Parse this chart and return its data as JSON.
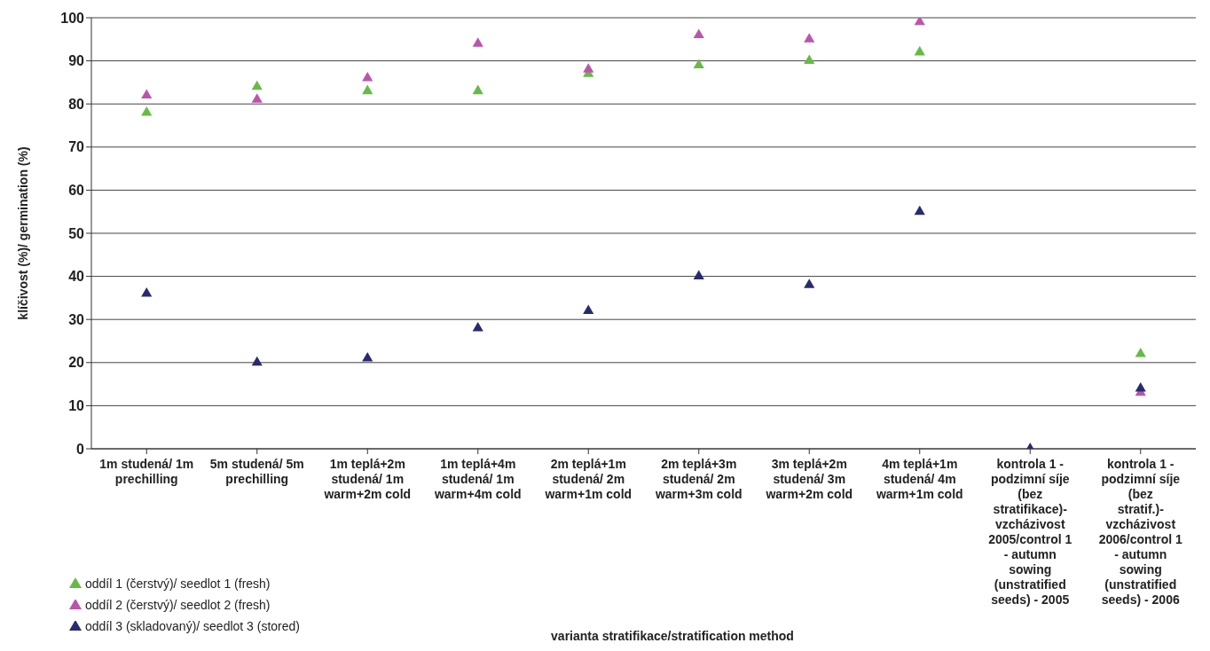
{
  "chart_data": {
    "type": "scatter",
    "annotations": [
      "varianta stratifikace/stratification method"
    ],
    "ylabel": "klíčivost (%)/ germination (%)",
    "categories": [
      "1m studená/ 1m prechilling",
      "5m studená/ 5m prechilling",
      "1m teplá+2m studená/ 1m warm+2m cold",
      "1m teplá+4m studená/ 1m warm+4m cold",
      "2m teplá+1m studená/ 2m warm+1m cold",
      "2m teplá+3m studená/ 2m warm+3m cold",
      "3m teplá+2m studená/ 3m warm+2m cold",
      "4m teplá+1m studená/ 4m warm+1m cold",
      "kontrola 1 - podzimní síje (bez stratifikace)- vzcházivost 2005/control 1 - autumn sowing (unstratified seeds) - 2005",
      "kontrola 1 - podzimní síje (bez stratif.)- vzcházivost 2006/control 1 - autumn sowing (unstratified seeds) - 2006"
    ],
    "series": [
      {
        "name": "oddíl 1 (čerstvý)/ seedlot 1 (fresh)",
        "color": "#66bb44",
        "values": [
          78,
          84,
          83,
          83,
          87,
          89,
          90,
          92,
          null,
          22
        ]
      },
      {
        "name": "oddíl 2 (čerstvý)/ seedlot 2 (fresh)",
        "color": "#bb55aa",
        "values": [
          82,
          81,
          86,
          94,
          88,
          96,
          95,
          99,
          null,
          13
        ]
      },
      {
        "name": "oddíl 3 (skladovaný)/ seedlot 3 (stored)",
        "color": "#2a2a70",
        "values": [
          36,
          20,
          21,
          28,
          32,
          40,
          38,
          55,
          0,
          14
        ]
      }
    ],
    "ylim": [
      0,
      100
    ],
    "yticks": [
      0,
      10,
      20,
      30,
      40,
      50,
      60,
      70,
      80,
      90,
      100
    ],
    "grid": "y",
    "legend": "bottom left",
    "marker": "triangle"
  }
}
